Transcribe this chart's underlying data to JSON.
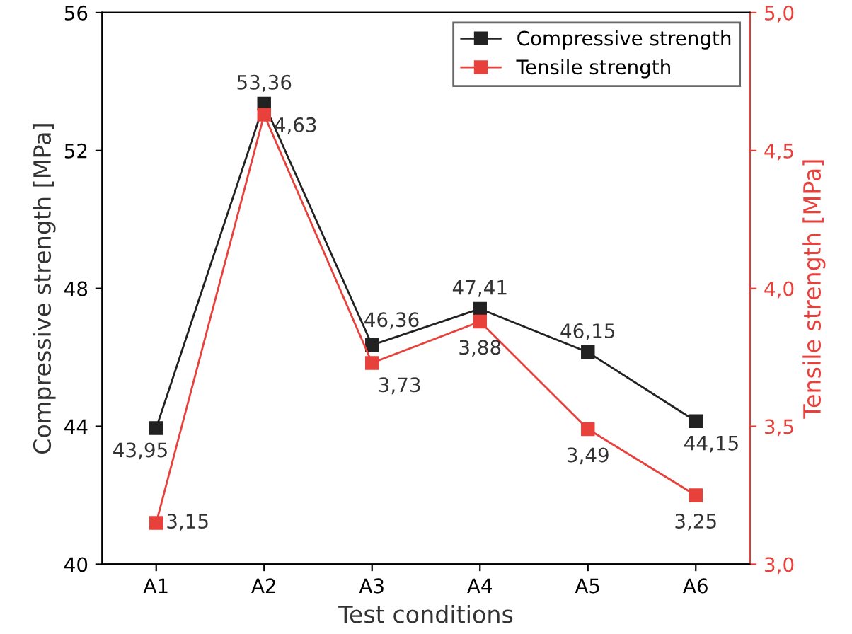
{
  "chart_data": {
    "type": "line",
    "xlabel": "Test conditions",
    "ylabel": "Compressive strength [MPa]",
    "y2label": "Tensile strength [MPa]",
    "categories": [
      "A1",
      "A2",
      "A3",
      "A4",
      "A5",
      "A6"
    ],
    "series": [
      {
        "name": "Compressive strength",
        "color": "#222222",
        "values": [
          43.95,
          53.36,
          46.36,
          47.41,
          46.15,
          44.15
        ],
        "value_labels": [
          "43,95",
          "53,36",
          "46,36",
          "47,41",
          "46,15",
          "44,15"
        ]
      },
      {
        "name": "Tensile strength",
        "color": "#e8413c",
        "axis": "y2",
        "values": [
          3.15,
          4.63,
          3.73,
          3.88,
          3.49,
          3.25
        ],
        "value_labels": [
          "3,15",
          "4,63",
          "3,73",
          "3,88",
          "3,49",
          "3,25"
        ]
      }
    ],
    "ylim": [
      40,
      56
    ],
    "yticks": [
      40,
      44,
      48,
      52,
      56
    ],
    "y2lim": [
      3.0,
      5.0
    ],
    "y2ticks": [
      {
        "value": 3.0,
        "label": "3,0"
      },
      {
        "value": 3.5,
        "label": "3,5"
      },
      {
        "value": 4.0,
        "label": "4,0"
      },
      {
        "value": 4.5,
        "label": "4,5"
      },
      {
        "value": 5.0,
        "label": "5,0"
      }
    ],
    "marker": "square",
    "line_style": "solid",
    "legend": "top right",
    "grid": false
  }
}
